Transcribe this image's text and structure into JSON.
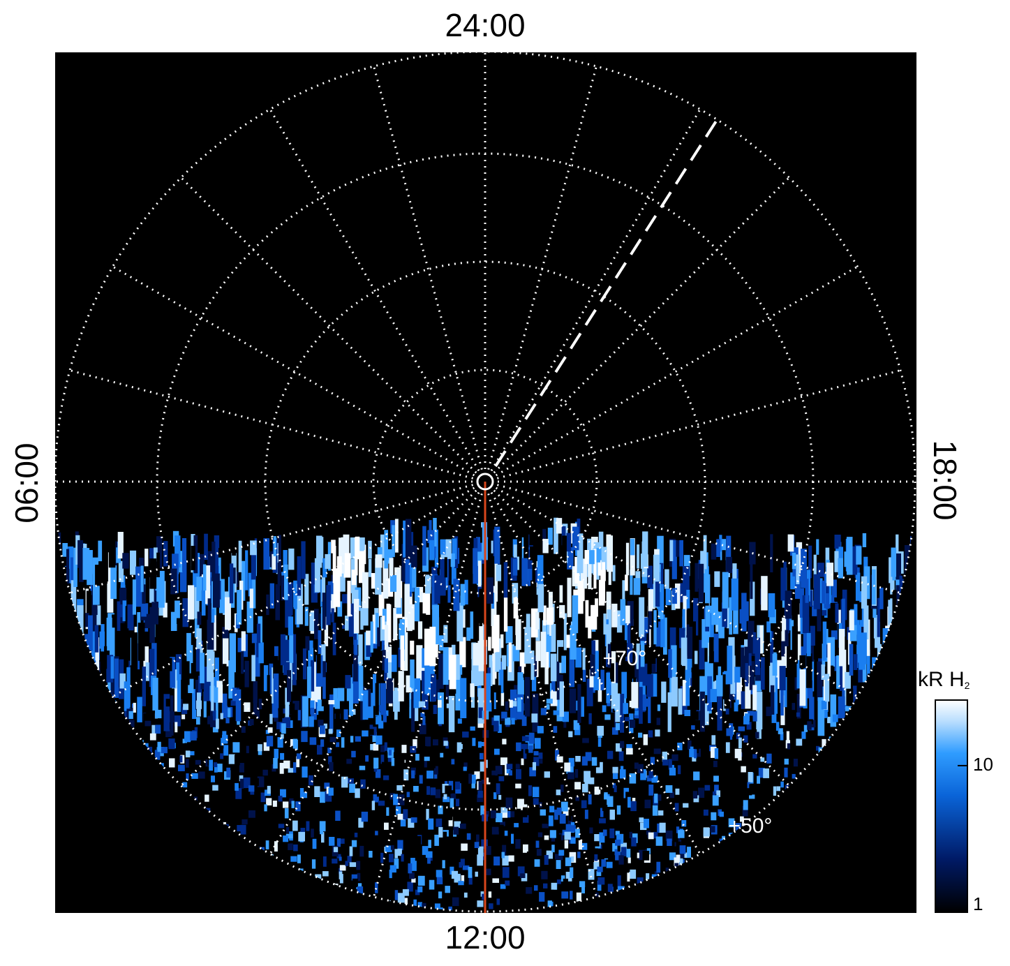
{
  "map": {
    "labels": {
      "top": "24:00",
      "bottom": "12:00",
      "left": "06:00",
      "right": "18:00"
    },
    "latitude_labels": [
      "+70°",
      "+50°"
    ],
    "colorbar": {
      "title": "kR H",
      "title_subscript": "2",
      "scale": "log",
      "clim": [
        1,
        28
      ],
      "ticks": [
        1,
        10
      ]
    }
  }
}
